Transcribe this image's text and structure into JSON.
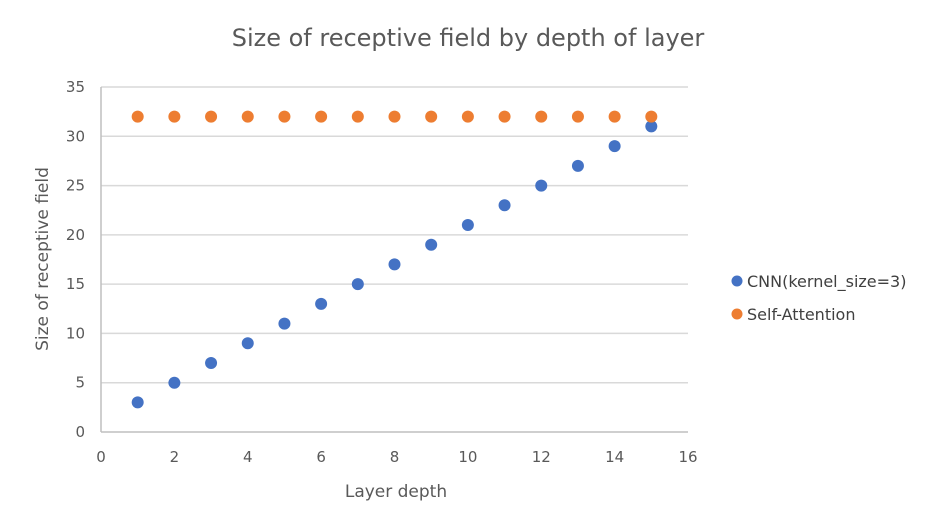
{
  "chart_data": {
    "type": "scatter",
    "title": "Size of receptive field by depth of layer",
    "xlabel": "Layer depth",
    "ylabel": "Size of receptive field",
    "xlim": [
      0,
      16
    ],
    "ylim": [
      0,
      35
    ],
    "xticks": [
      0,
      2,
      4,
      6,
      8,
      10,
      12,
      14,
      16
    ],
    "yticks": [
      0,
      5,
      10,
      15,
      20,
      25,
      30,
      35
    ],
    "grid": "horizontal",
    "legend_position": "right",
    "series": [
      {
        "name": "CNN(kernel_size=3)",
        "color": "#4472c4",
        "x": [
          1,
          2,
          3,
          4,
          5,
          6,
          7,
          8,
          9,
          10,
          11,
          12,
          13,
          14,
          15
        ],
        "y": [
          3,
          5,
          7,
          9,
          11,
          13,
          15,
          17,
          19,
          21,
          23,
          25,
          27,
          29,
          31
        ]
      },
      {
        "name": "Self-Attention",
        "color": "#ed7d31",
        "x": [
          1,
          2,
          3,
          4,
          5,
          6,
          7,
          8,
          9,
          10,
          11,
          12,
          13,
          14,
          15
        ],
        "y": [
          32,
          32,
          32,
          32,
          32,
          32,
          32,
          32,
          32,
          32,
          32,
          32,
          32,
          32,
          32
        ]
      }
    ]
  }
}
